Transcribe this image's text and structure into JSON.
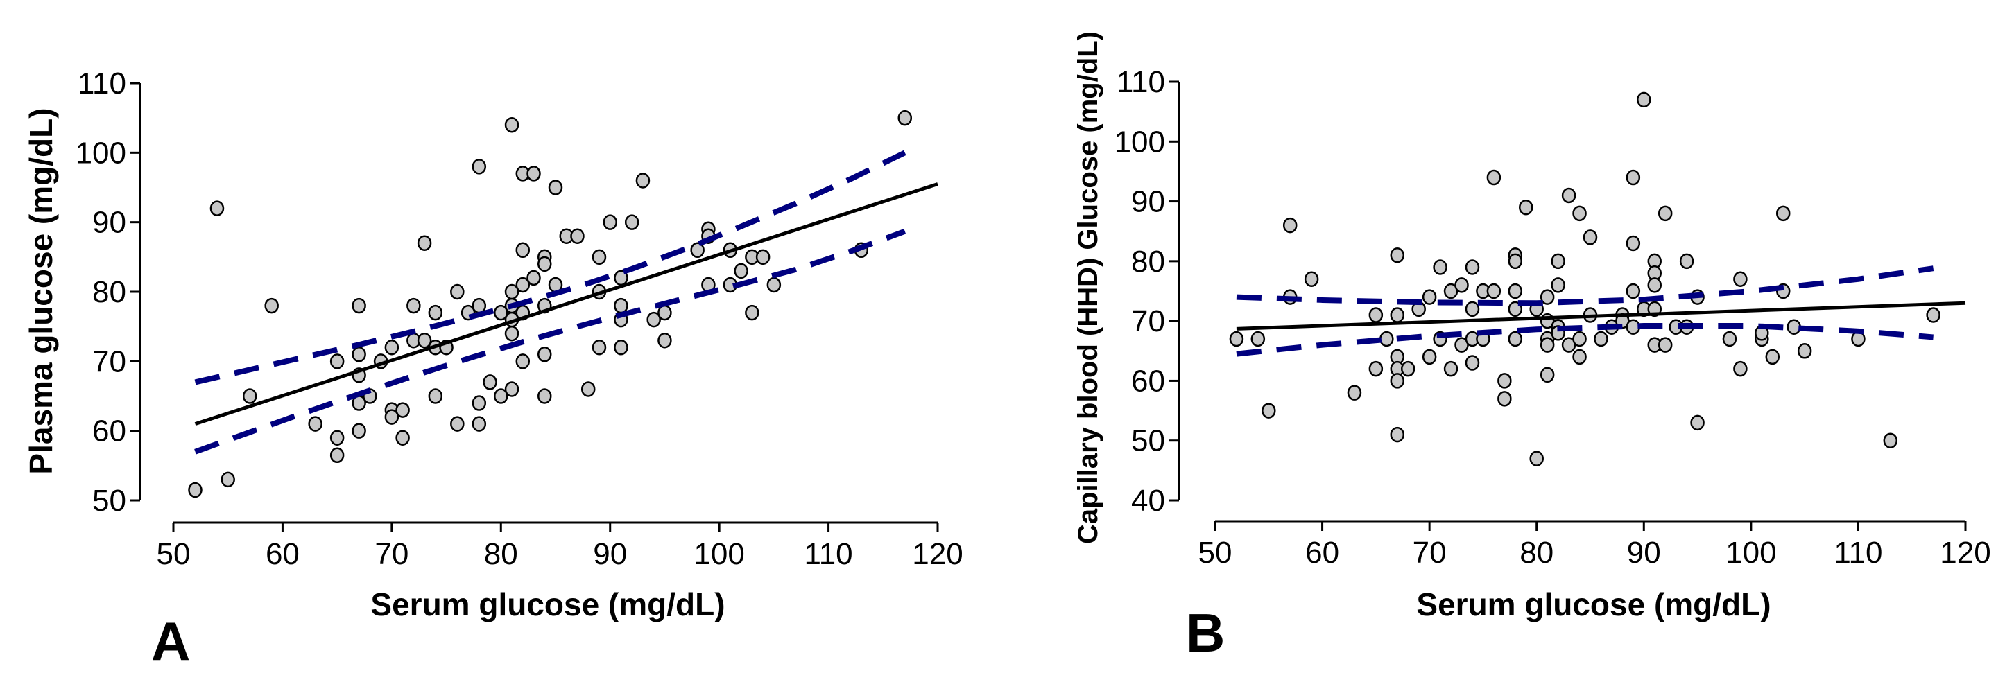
{
  "chart_data": [
    {
      "panel_label": "A",
      "type": "scatter",
      "xlabel": "Serum glucose (mg/dL)",
      "ylabel": "Plasma glucose (mg/dL)",
      "xlim": [
        50,
        120
      ],
      "ylim": [
        50,
        110
      ],
      "xticks": [
        50,
        60,
        70,
        80,
        90,
        100,
        110,
        120
      ],
      "yticks": [
        50,
        60,
        70,
        80,
        90,
        100,
        110
      ],
      "regression": {
        "x": [
          52,
          120
        ],
        "y": [
          61,
          95.5
        ]
      },
      "ci_upper": {
        "x": [
          52,
          57,
          62,
          67,
          72,
          77,
          82,
          87,
          92,
          97,
          102,
          107,
          112,
          117
        ],
        "y": [
          67,
          68.8,
          70.6,
          72.4,
          74.3,
          76.3,
          78.4,
          80.7,
          83.3,
          86.2,
          89.4,
          92.7,
          96.2,
          100
        ]
      },
      "ci_lower": {
        "x": [
          52,
          57,
          62,
          67,
          72,
          77,
          82,
          87,
          92,
          97,
          102,
          107,
          112,
          117
        ],
        "y": [
          57,
          59.8,
          62.6,
          65.3,
          67.9,
          70.4,
          72.8,
          75,
          77.1,
          79.1,
          81.1,
          83.2,
          85.8,
          88.7
        ]
      },
      "points": [
        [
          52,
          51.5
        ],
        [
          54,
          92
        ],
        [
          55,
          53
        ],
        [
          57,
          65
        ],
        [
          59,
          78
        ],
        [
          63,
          61
        ],
        [
          65,
          56.5
        ],
        [
          65,
          59
        ],
        [
          65,
          70
        ],
        [
          67,
          78
        ],
        [
          67,
          71
        ],
        [
          67,
          68
        ],
        [
          67,
          64
        ],
        [
          67,
          60
        ],
        [
          68,
          65
        ],
        [
          69,
          70
        ],
        [
          70,
          72
        ],
        [
          70,
          63
        ],
        [
          70,
          62
        ],
        [
          71,
          63
        ],
        [
          71,
          59
        ],
        [
          72,
          78
        ],
        [
          72,
          73
        ],
        [
          73,
          73
        ],
        [
          73,
          87
        ],
        [
          74,
          77
        ],
        [
          74,
          72
        ],
        [
          74,
          65
        ],
        [
          75,
          72
        ],
        [
          76,
          80
        ],
        [
          76,
          61
        ],
        [
          77,
          77
        ],
        [
          78,
          98
        ],
        [
          78,
          78
        ],
        [
          78,
          64
        ],
        [
          78,
          61
        ],
        [
          79,
          67
        ],
        [
          80,
          77
        ],
        [
          80,
          65
        ],
        [
          81,
          104
        ],
        [
          81,
          80
        ],
        [
          81,
          78
        ],
        [
          81,
          76
        ],
        [
          81,
          74
        ],
        [
          81,
          66
        ],
        [
          82,
          97
        ],
        [
          82,
          86
        ],
        [
          82,
          81
        ],
        [
          82,
          77
        ],
        [
          82,
          70
        ],
        [
          83,
          97
        ],
        [
          83,
          82
        ],
        [
          84,
          85
        ],
        [
          84,
          84
        ],
        [
          84,
          78
        ],
        [
          84,
          71
        ],
        [
          84,
          65
        ],
        [
          85,
          95
        ],
        [
          85,
          81
        ],
        [
          86,
          88
        ],
        [
          87,
          88
        ],
        [
          88,
          66
        ],
        [
          89,
          85
        ],
        [
          89,
          80
        ],
        [
          89,
          72
        ],
        [
          90,
          90
        ],
        [
          91,
          82
        ],
        [
          91,
          78
        ],
        [
          91,
          76
        ],
        [
          91,
          72
        ],
        [
          92,
          90
        ],
        [
          93,
          96
        ],
        [
          94,
          76
        ],
        [
          95,
          77
        ],
        [
          95,
          73
        ],
        [
          98,
          86
        ],
        [
          99,
          89
        ],
        [
          99,
          88
        ],
        [
          99,
          81
        ],
        [
          101,
          86
        ],
        [
          101,
          81
        ],
        [
          102,
          83
        ],
        [
          103,
          85
        ],
        [
          103,
          77
        ],
        [
          104,
          85
        ],
        [
          105,
          81
        ],
        [
          113,
          86
        ],
        [
          117,
          105
        ]
      ]
    },
    {
      "panel_label": "B",
      "type": "scatter",
      "xlabel": "Serum glucose (mg/dL)",
      "ylabel": "Capillary blood (HHD) Glucose (mg/dL)",
      "xlim": [
        50,
        120
      ],
      "ylim": [
        40,
        110
      ],
      "xticks": [
        50,
        60,
        70,
        80,
        90,
        100,
        110,
        120
      ],
      "yticks": [
        40,
        50,
        60,
        70,
        80,
        90,
        100,
        110
      ],
      "regression": {
        "x": [
          52,
          120
        ],
        "y": [
          68.7,
          73
        ]
      },
      "ci_upper": {
        "x": [
          52,
          60,
          70,
          80,
          90,
          100,
          110,
          117
        ],
        "y": [
          74,
          73.5,
          73.1,
          73,
          73.6,
          75,
          77,
          78.8
        ]
      },
      "ci_lower": {
        "x": [
          52,
          60,
          70,
          80,
          90,
          100,
          110,
          117
        ],
        "y": [
          64.5,
          66,
          67.5,
          68.6,
          69.2,
          69.2,
          68.3,
          67.3
        ]
      },
      "points": [
        [
          52,
          67
        ],
        [
          54,
          67
        ],
        [
          55,
          55
        ],
        [
          57,
          86
        ],
        [
          57,
          74
        ],
        [
          59,
          77
        ],
        [
          63,
          58
        ],
        [
          65,
          71
        ],
        [
          65,
          62
        ],
        [
          66,
          67
        ],
        [
          67,
          81
        ],
        [
          67,
          71
        ],
        [
          67,
          64
        ],
        [
          67,
          62
        ],
        [
          67,
          60
        ],
        [
          67,
          51
        ],
        [
          68,
          62
        ],
        [
          69,
          72
        ],
        [
          70,
          74
        ],
        [
          70,
          64
        ],
        [
          71,
          79
        ],
        [
          71,
          67
        ],
        [
          72,
          75
        ],
        [
          72,
          62
        ],
        [
          73,
          76
        ],
        [
          73,
          66
        ],
        [
          74,
          79
        ],
        [
          74,
          72
        ],
        [
          74,
          67
        ],
        [
          74,
          63
        ],
        [
          75,
          67
        ],
        [
          75,
          75
        ],
        [
          76,
          94
        ],
        [
          76,
          75
        ],
        [
          77,
          60
        ],
        [
          77,
          57
        ],
        [
          78,
          81
        ],
        [
          78,
          80
        ],
        [
          78,
          75
        ],
        [
          78,
          72
        ],
        [
          78,
          67
        ],
        [
          79,
          89
        ],
        [
          80,
          47
        ],
        [
          80,
          72
        ],
        [
          81,
          74
        ],
        [
          81,
          70
        ],
        [
          81,
          67
        ],
        [
          81,
          66
        ],
        [
          81,
          61
        ],
        [
          82,
          80
        ],
        [
          82,
          76
        ],
        [
          82,
          69
        ],
        [
          82,
          68
        ],
        [
          83,
          91
        ],
        [
          83,
          66
        ],
        [
          84,
          88
        ],
        [
          84,
          67
        ],
        [
          84,
          64
        ],
        [
          85,
          84
        ],
        [
          85,
          71
        ],
        [
          86,
          67
        ],
        [
          87,
          69
        ],
        [
          88,
          71
        ],
        [
          88,
          70
        ],
        [
          89,
          94
        ],
        [
          89,
          83
        ],
        [
          89,
          75
        ],
        [
          89,
          69
        ],
        [
          90,
          107
        ],
        [
          90,
          72
        ],
        [
          91,
          80
        ],
        [
          91,
          78
        ],
        [
          91,
          76
        ],
        [
          91,
          72
        ],
        [
          91,
          66
        ],
        [
          92,
          88
        ],
        [
          92,
          66
        ],
        [
          93,
          69
        ],
        [
          94,
          80
        ],
        [
          94,
          69
        ],
        [
          95,
          74
        ],
        [
          95,
          53
        ],
        [
          98,
          67
        ],
        [
          99,
          77
        ],
        [
          99,
          62
        ],
        [
          101,
          67
        ],
        [
          101,
          68
        ],
        [
          102,
          64
        ],
        [
          103,
          88
        ],
        [
          103,
          75
        ],
        [
          104,
          69
        ],
        [
          105,
          65
        ],
        [
          110,
          67
        ],
        [
          113,
          50
        ],
        [
          117,
          71
        ]
      ]
    }
  ]
}
